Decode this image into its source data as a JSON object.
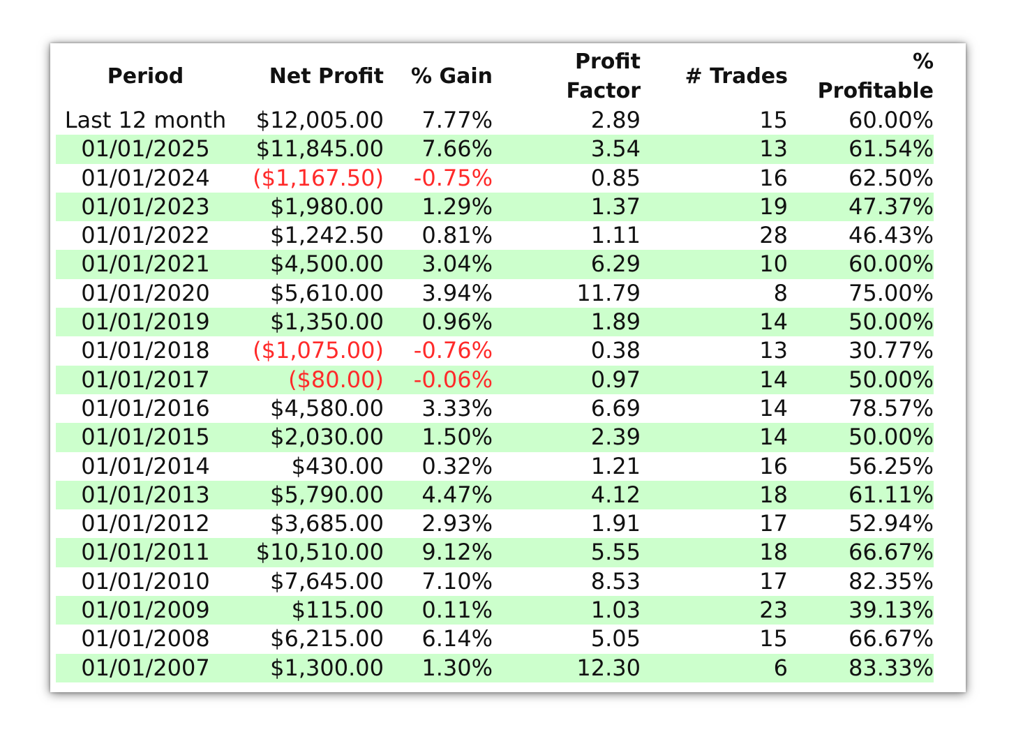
{
  "chart_data": {
    "type": "table",
    "columns": [
      [
        "Period"
      ],
      [
        "Net Profit"
      ],
      [
        "% Gain"
      ],
      [
        "Profit",
        "Factor"
      ],
      [
        "# Trades"
      ],
      [
        "%",
        "Profitable"
      ]
    ],
    "rows": [
      {
        "period": "Last 12 month",
        "net_profit": "$12,005.00",
        "gain": "7.77%",
        "profit_factor": "2.89",
        "trades": "15",
        "profitable": "60.00%",
        "negative": false
      },
      {
        "period": "01/01/2025",
        "net_profit": "$11,845.00",
        "gain": "7.66%",
        "profit_factor": "3.54",
        "trades": "13",
        "profitable": "61.54%",
        "negative": false
      },
      {
        "period": "01/01/2024",
        "net_profit": "($1,167.50)",
        "gain": "-0.75%",
        "profit_factor": "0.85",
        "trades": "16",
        "profitable": "62.50%",
        "negative": true
      },
      {
        "period": "01/01/2023",
        "net_profit": "$1,980.00",
        "gain": "1.29%",
        "profit_factor": "1.37",
        "trades": "19",
        "profitable": "47.37%",
        "negative": false
      },
      {
        "period": "01/01/2022",
        "net_profit": "$1,242.50",
        "gain": "0.81%",
        "profit_factor": "1.11",
        "trades": "28",
        "profitable": "46.43%",
        "negative": false
      },
      {
        "period": "01/01/2021",
        "net_profit": "$4,500.00",
        "gain": "3.04%",
        "profit_factor": "6.29",
        "trades": "10",
        "profitable": "60.00%",
        "negative": false
      },
      {
        "period": "01/01/2020",
        "net_profit": "$5,610.00",
        "gain": "3.94%",
        "profit_factor": "11.79",
        "trades": "8",
        "profitable": "75.00%",
        "negative": false
      },
      {
        "period": "01/01/2019",
        "net_profit": "$1,350.00",
        "gain": "0.96%",
        "profit_factor": "1.89",
        "trades": "14",
        "profitable": "50.00%",
        "negative": false
      },
      {
        "period": "01/01/2018",
        "net_profit": "($1,075.00)",
        "gain": "-0.76%",
        "profit_factor": "0.38",
        "trades": "13",
        "profitable": "30.77%",
        "negative": true
      },
      {
        "period": "01/01/2017",
        "net_profit": "($80.00)",
        "gain": "-0.06%",
        "profit_factor": "0.97",
        "trades": "14",
        "profitable": "50.00%",
        "negative": true
      },
      {
        "period": "01/01/2016",
        "net_profit": "$4,580.00",
        "gain": "3.33%",
        "profit_factor": "6.69",
        "trades": "14",
        "profitable": "78.57%",
        "negative": false
      },
      {
        "period": "01/01/2015",
        "net_profit": "$2,030.00",
        "gain": "1.50%",
        "profit_factor": "2.39",
        "trades": "14",
        "profitable": "50.00%",
        "negative": false
      },
      {
        "period": "01/01/2014",
        "net_profit": "$430.00",
        "gain": "0.32%",
        "profit_factor": "1.21",
        "trades": "16",
        "profitable": "56.25%",
        "negative": false
      },
      {
        "period": "01/01/2013",
        "net_profit": "$5,790.00",
        "gain": "4.47%",
        "profit_factor": "4.12",
        "trades": "18",
        "profitable": "61.11%",
        "negative": false
      },
      {
        "period": "01/01/2012",
        "net_profit": "$3,685.00",
        "gain": "2.93%",
        "profit_factor": "1.91",
        "trades": "17",
        "profitable": "52.94%",
        "negative": false
      },
      {
        "period": "01/01/2011",
        "net_profit": "$10,510.00",
        "gain": "9.12%",
        "profit_factor": "5.55",
        "trades": "18",
        "profitable": "66.67%",
        "negative": false
      },
      {
        "period": "01/01/2010",
        "net_profit": "$7,645.00",
        "gain": "7.10%",
        "profit_factor": "8.53",
        "trades": "17",
        "profitable": "82.35%",
        "negative": false
      },
      {
        "period": "01/01/2009",
        "net_profit": "$115.00",
        "gain": "0.11%",
        "profit_factor": "1.03",
        "trades": "23",
        "profitable": "39.13%",
        "negative": false
      },
      {
        "period": "01/01/2008",
        "net_profit": "$6,215.00",
        "gain": "6.14%",
        "profit_factor": "5.05",
        "trades": "15",
        "profitable": "66.67%",
        "negative": false
      },
      {
        "period": "01/01/2007",
        "net_profit": "$1,300.00",
        "gain": "1.30%",
        "profit_factor": "12.30",
        "trades": "6",
        "profitable": "83.33%",
        "negative": false
      }
    ],
    "colors": {
      "shaded_row": "#ccffcc",
      "negative_text": "#ff2a2a",
      "text": "#111111"
    }
  }
}
